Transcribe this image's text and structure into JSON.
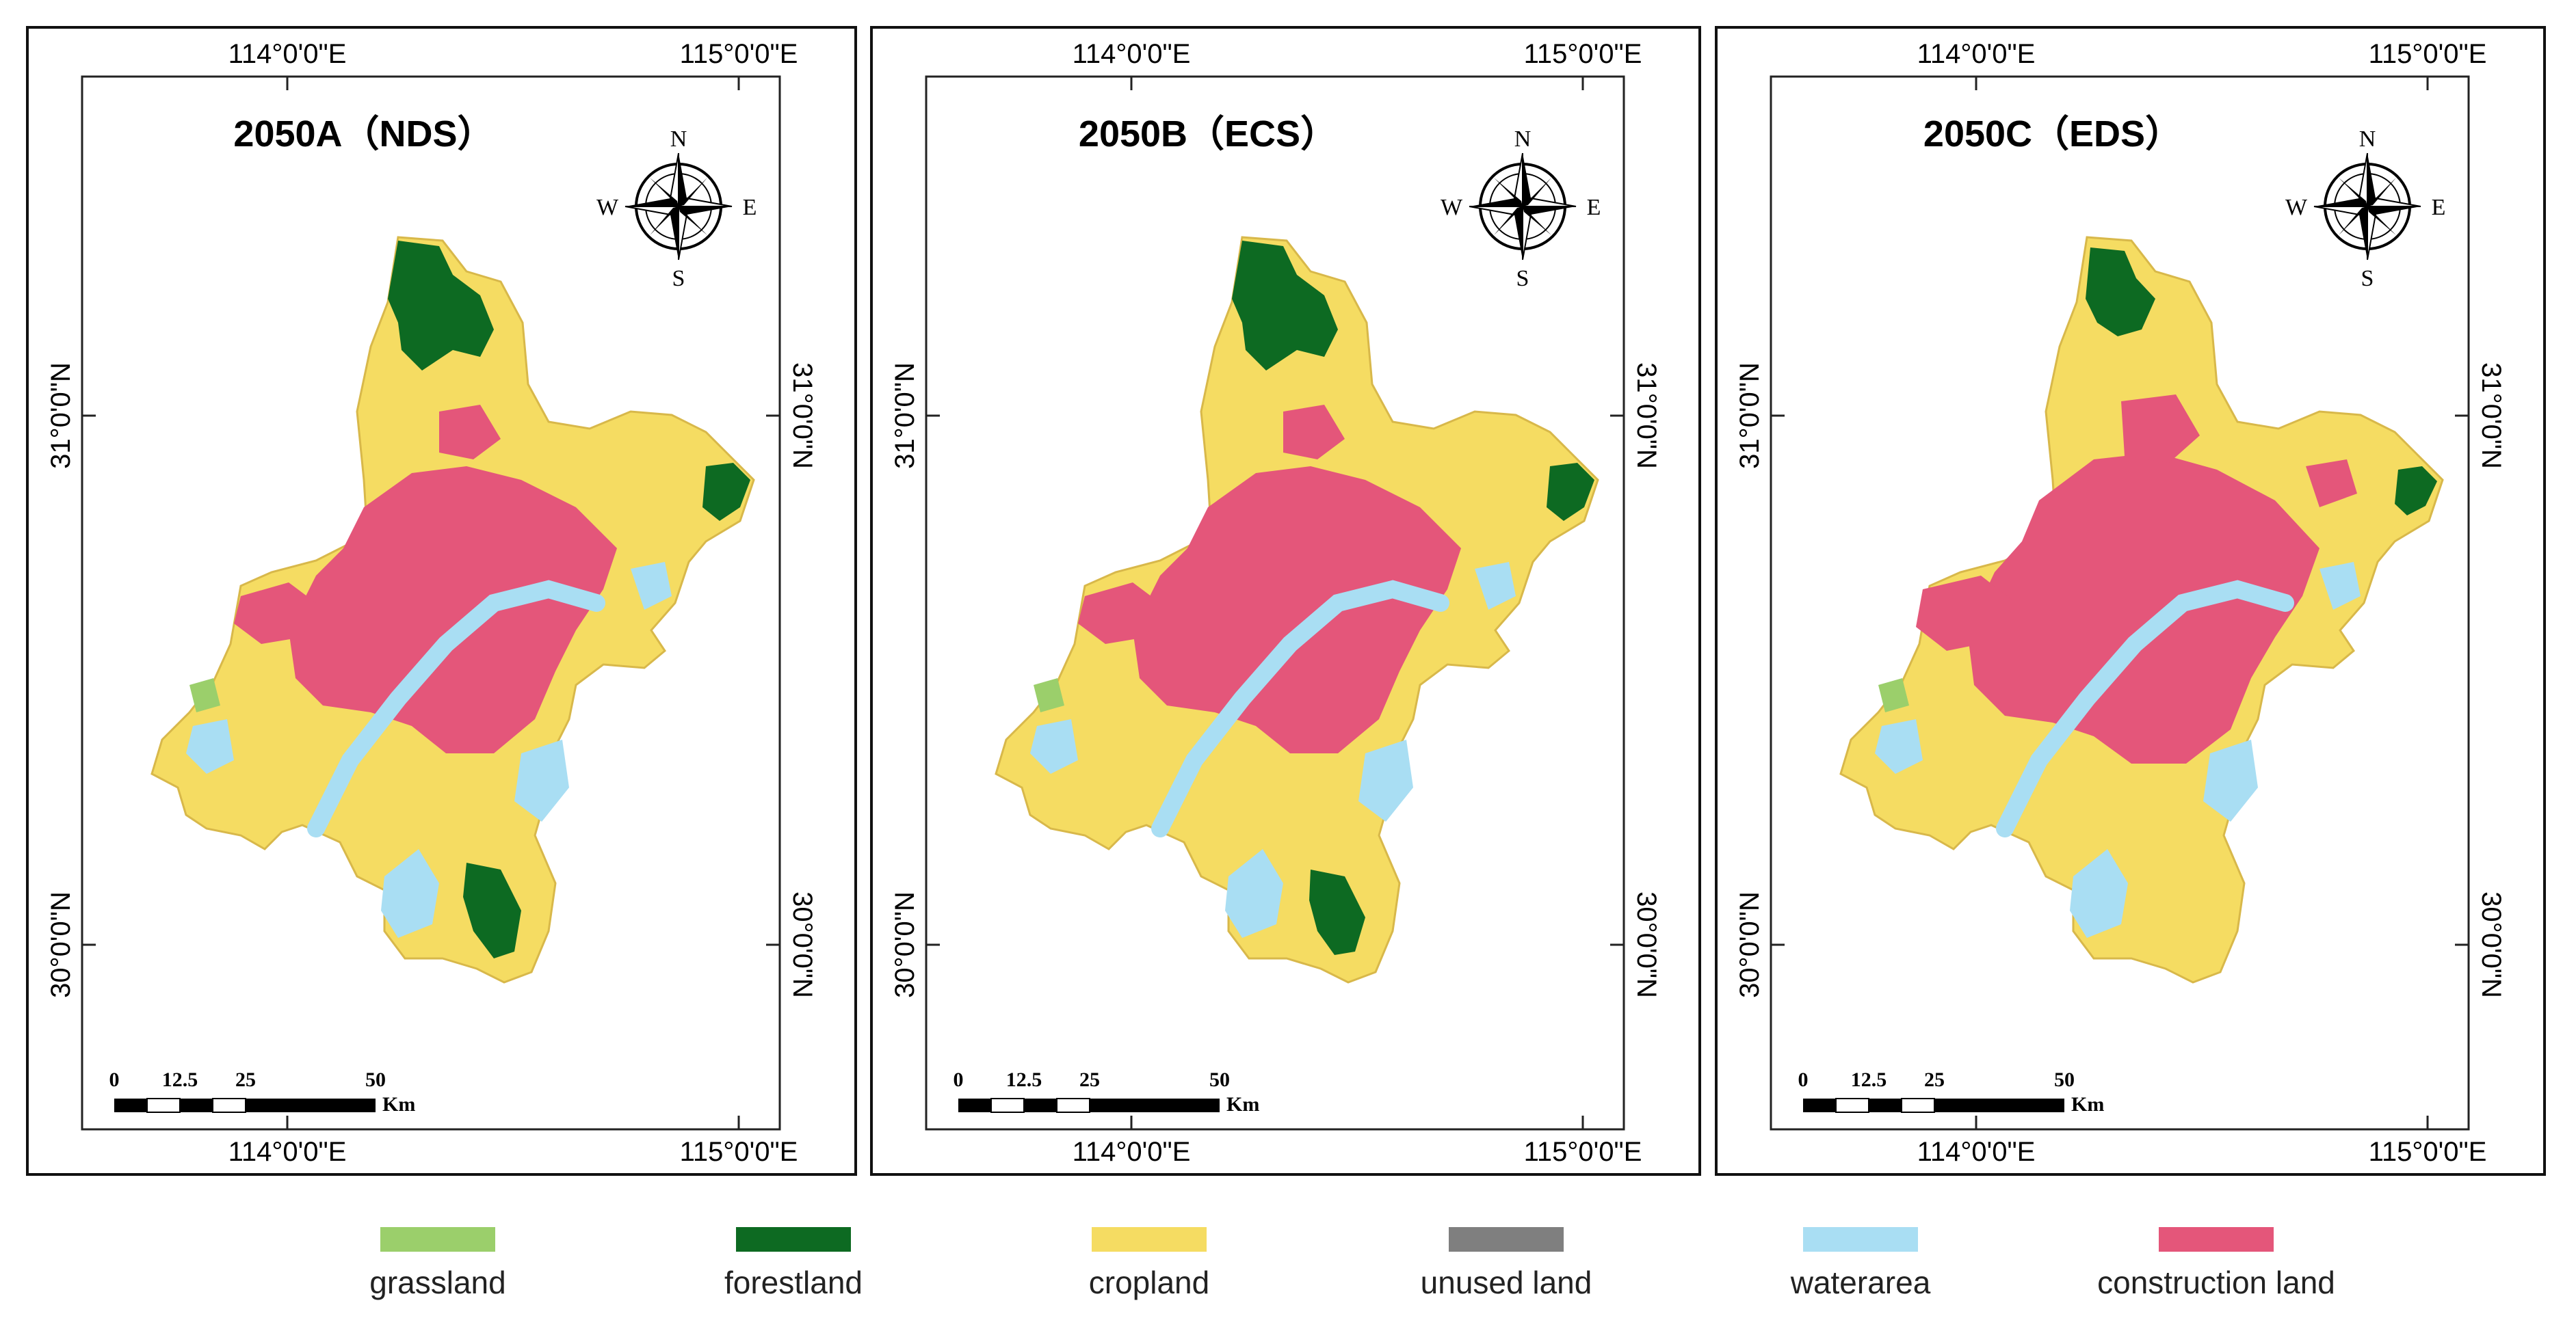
{
  "panels": [
    {
      "title": "2050A（NDS）"
    },
    {
      "title": "2050B（ECS）"
    },
    {
      "title": "2050C（EDS）"
    }
  ],
  "graticule": {
    "top_labels": [
      "114°0'0\"E",
      "115°0'0\"E"
    ],
    "bottom_labels": [
      "114°0'0\"E",
      "115°0'0\"E"
    ],
    "left_labels": [
      "31°0'0\"N",
      "30°0'0\"N"
    ],
    "right_labels": [
      "31°0'0\"N",
      "30°0'0\"N"
    ]
  },
  "compass": {
    "north": "N",
    "south": "S",
    "east": "E",
    "west": "W"
  },
  "scale_bar": {
    "ticks": [
      "0",
      "12.5",
      "25",
      "50"
    ],
    "unit": "Km"
  },
  "legend": [
    {
      "label": "grassland",
      "color": "#9bcf6b"
    },
    {
      "label": "forestland",
      "color": "#0d6a22"
    },
    {
      "label": "cropland",
      "color": "#f5dc62"
    },
    {
      "label": "unused land",
      "color": "#7f7f7f"
    },
    {
      "label": "waterarea",
      "color": "#a9def3"
    },
    {
      "label": "construction land",
      "color": "#e4567a"
    }
  ],
  "land_colors": {
    "cropland": "#f5dc62",
    "construction": "#e4567a",
    "water": "#a9def3",
    "forest": "#0d6a22",
    "grass": "#9bcf6b"
  }
}
